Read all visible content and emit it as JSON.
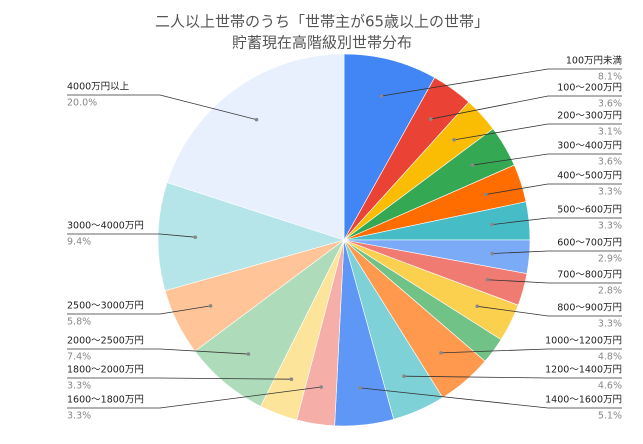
{
  "chart_data": {
    "type": "pie",
    "title": "二人以上世帯のうち「世帯主が65歳以上の世帯」",
    "subtitle": "貯蓄現在高階級別世帯分布",
    "categories": [
      "100万円未満",
      "100～200万円",
      "200～300万円",
      "300～400万円",
      "400～500万円",
      "500～600万円",
      "600～700万円",
      "700～800万円",
      "800～900万円",
      null,
      "1000～1200万円",
      "1200～1400万円",
      "1400～1600万円",
      "1600～1800万円",
      "1800～2000万円",
      "2000～2500万円",
      "2500～3000万円",
      "3000～4000万円",
      "4000万円以上"
    ],
    "values": [
      8.1,
      3.6,
      3.1,
      3.6,
      3.3,
      3.3,
      2.9,
      2.8,
      3.3,
      2.3,
      4.8,
      4.6,
      5.1,
      3.3,
      3.3,
      7.4,
      5.8,
      9.4,
      20.0
    ],
    "value_labels": [
      "8.1%",
      "3.6%",
      "3.1%",
      "3.6%",
      "3.3%",
      "3.3%",
      "2.9%",
      "2.8%",
      "3.3%",
      null,
      "4.8%",
      "4.6%",
      "5.1%",
      "3.3%",
      "3.3%",
      "7.4%",
      "5.8%",
      "9.4%",
      "20.0%"
    ],
    "colors": [
      "#4285f4",
      "#ea4335",
      "#fbbc04",
      "#34a853",
      "#ff6d01",
      "#46bdc6",
      "#7baaf7",
      "#f07b72",
      "#fcd04f",
      "#71c287",
      "#ff994d",
      "#7ed1d7",
      "#5e97f6",
      "#f6aea9",
      "#fde49b",
      "#aedcba",
      "#ffc599",
      "#b5e5e8",
      "#e8f0fe"
    ]
  }
}
